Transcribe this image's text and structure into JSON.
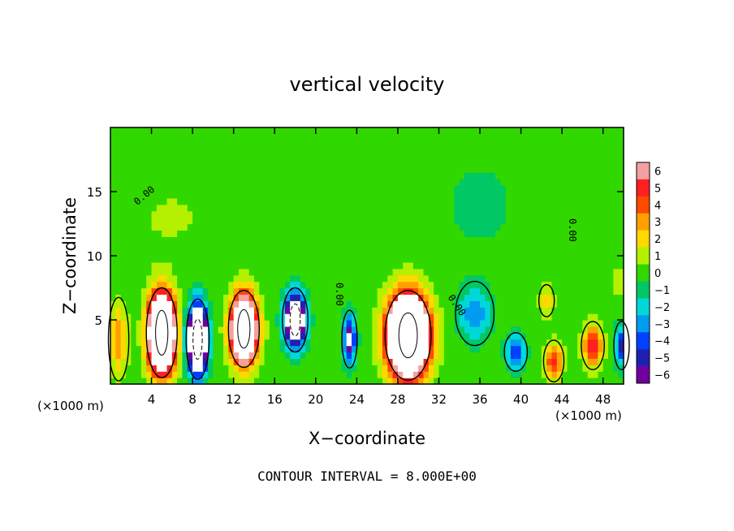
{
  "chart_data": {
    "type": "heatmap",
    "title": "vertical velocity",
    "xlabel": "X−coordinate",
    "ylabel": "Z−coordinate",
    "x_units_left": "(×1000 m)",
    "x_units_right": "(×1000 m)",
    "footer": "CONTOUR INTERVAL = 8.000E+00",
    "xlim": [
      0,
      50
    ],
    "ylim": [
      0,
      20
    ],
    "x_ticks": [
      4,
      8,
      12,
      16,
      20,
      24,
      28,
      32,
      36,
      40,
      44,
      48
    ],
    "x_tick_labels": [
      "4",
      "8",
      "12",
      "16",
      "20",
      "24",
      "28",
      "32",
      "36",
      "40",
      "44",
      "48"
    ],
    "y_ticks": [
      5,
      10,
      15
    ],
    "y_tick_labels": [
      "5",
      "10",
      "15"
    ],
    "contour_label": "0.00",
    "colorbar": {
      "min": -6,
      "max": 6,
      "levels": [
        6,
        5,
        4,
        3,
        2,
        1,
        0,
        -1,
        -2,
        -3,
        -4,
        -5,
        -6
      ],
      "level_labels": [
        "6",
        "5",
        "4",
        "3",
        "2",
        "1",
        "0",
        "−1",
        "−2",
        "−3",
        "−4",
        "−5",
        "−6"
      ],
      "colors": [
        "#f4a0a0",
        "#ff2020",
        "#ff4a00",
        "#ffa000",
        "#ffd800",
        "#b4f000",
        "#30d800",
        "#00c864",
        "#00d8d8",
        "#009cf0",
        "#0040ff",
        "#2020b0",
        "#7000a0"
      ]
    },
    "cells": [
      {
        "x": 0.8,
        "z": 3.5,
        "w": 3.2,
        "dx": 0.8,
        "dz": 2.6
      },
      {
        "x": 5.0,
        "z": 4.0,
        "w": 20,
        "dx": 1.2,
        "dz": 2.8
      },
      {
        "x": 8.5,
        "z": 3.5,
        "w": -16,
        "dx": 0.9,
        "dz": 2.5
      },
      {
        "x": 13.0,
        "z": 4.3,
        "w": 18,
        "dx": 1.2,
        "dz": 2.4
      },
      {
        "x": 18.0,
        "z": 5.0,
        "w": -12,
        "dx": 1.0,
        "dz": 2.0
      },
      {
        "x": 23.3,
        "z": 3.5,
        "w": -7,
        "dx": 0.6,
        "dz": 1.8
      },
      {
        "x": 29.0,
        "z": 3.8,
        "w": 24,
        "dx": 1.8,
        "dz": 2.8
      },
      {
        "x": 35.5,
        "z": 5.5,
        "w": -3.5,
        "dx": 1.5,
        "dz": 2.0
      },
      {
        "x": 39.5,
        "z": 2.5,
        "w": -5,
        "dx": 0.9,
        "dz": 1.2
      },
      {
        "x": 42.5,
        "z": 6.5,
        "w": 3,
        "dx": 0.6,
        "dz": 1.0
      },
      {
        "x": 43.2,
        "z": 1.8,
        "w": 5,
        "dx": 0.8,
        "dz": 1.3
      },
      {
        "x": 47.0,
        "z": 3.0,
        "w": 6,
        "dx": 0.9,
        "dz": 1.5
      },
      {
        "x": 49.8,
        "z": 3.0,
        "w": -5,
        "dx": 0.6,
        "dz": 1.5
      },
      {
        "x": 36.0,
        "z": 14.0,
        "w": -0.8,
        "dx": 4.0,
        "dz": 4.0
      },
      {
        "x": 6.0,
        "z": 13.0,
        "w": 0.6,
        "dx": 5.0,
        "dz": 3.0
      },
      {
        "x": 50.0,
        "z": 8.0,
        "w": 1.0,
        "dx": 1.5,
        "dz": 1.5
      }
    ]
  }
}
